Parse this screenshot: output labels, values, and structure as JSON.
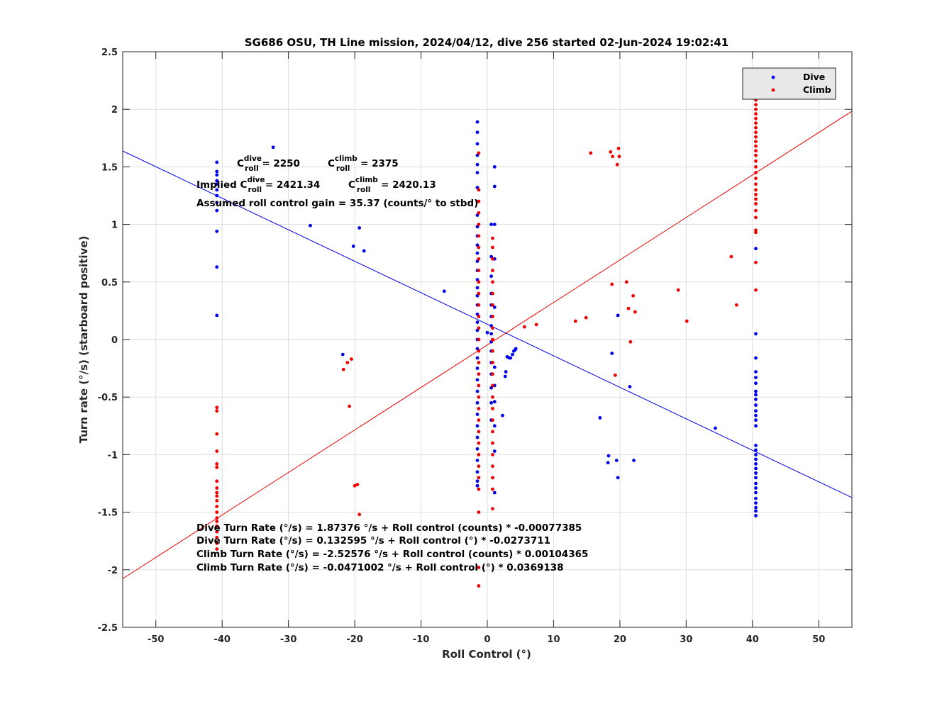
{
  "chart_data": {
    "type": "scatter",
    "title": "SG686 OSU, TH Line mission, 2024/04/12, dive 256 started 02-Jun-2024 19:02:41",
    "xlabel": "Roll Control (°)",
    "ylabel": "Turn rate (°/s) (starboard positive)",
    "xlim": [
      -55,
      55
    ],
    "ylim": [
      -2.5,
      2.5
    ],
    "xticks": [
      -50,
      -40,
      -30,
      -20,
      -10,
      0,
      10,
      20,
      30,
      40,
      50
    ],
    "yticks": [
      -2.5,
      -2,
      -1.5,
      -1,
      -0.5,
      0,
      0.5,
      1,
      1.5,
      2,
      2.5
    ],
    "grid": true,
    "legend_position": "top-right",
    "colors": {
      "dive": "#0000ee",
      "climb": "#ee0000"
    },
    "series": [
      {
        "name": "Dive",
        "color": "#0000ee",
        "points": [
          [
            -40.8,
            1.54
          ],
          [
            -40.8,
            1.46
          ],
          [
            -40.8,
            1.43
          ],
          [
            -40.8,
            1.38
          ],
          [
            -40.8,
            1.35
          ],
          [
            -40.8,
            1.3
          ],
          [
            -40.8,
            1.25
          ],
          [
            -40.8,
            1.19
          ],
          [
            -40.8,
            1.12
          ],
          [
            -40.8,
            0.94
          ],
          [
            -40.8,
            0.63
          ],
          [
            -40.8,
            0.21
          ],
          [
            -32.3,
            1.67
          ],
          [
            -26.7,
            0.99
          ],
          [
            -19.3,
            0.97
          ],
          [
            -20.2,
            0.81
          ],
          [
            -18.6,
            0.77
          ],
          [
            -21.8,
            -0.13
          ],
          [
            -6.5,
            0.42
          ],
          [
            -1.5,
            1.89
          ],
          [
            -1.5,
            1.8
          ],
          [
            -1.5,
            1.7
          ],
          [
            -1.5,
            1.6
          ],
          [
            -1.5,
            1.52
          ],
          [
            -1.5,
            1.45
          ],
          [
            -1.5,
            1.32
          ],
          [
            -1.5,
            1.2
          ],
          [
            -1.5,
            1.08
          ],
          [
            -1.5,
            0.98
          ],
          [
            -1.5,
            0.9
          ],
          [
            -1.5,
            0.82
          ],
          [
            -1.5,
            0.75
          ],
          [
            -1.5,
            0.68
          ],
          [
            -1.5,
            0.6
          ],
          [
            -1.5,
            0.52
          ],
          [
            -1.5,
            0.45
          ],
          [
            -1.5,
            0.38
          ],
          [
            -1.5,
            0.3
          ],
          [
            -1.5,
            0.22
          ],
          [
            -1.5,
            0.15
          ],
          [
            -1.5,
            0.08
          ],
          [
            -1.5,
            0.0
          ],
          [
            -1.5,
            -0.08
          ],
          [
            -1.5,
            -0.16
          ],
          [
            -1.5,
            -0.25
          ],
          [
            -1.5,
            -0.35
          ],
          [
            -1.5,
            -0.45
          ],
          [
            -1.5,
            -0.55
          ],
          [
            -1.5,
            -0.65
          ],
          [
            -1.5,
            -0.75
          ],
          [
            -1.5,
            -0.85
          ],
          [
            -1.5,
            -0.95
          ],
          [
            -1.5,
            -1.05
          ],
          [
            -1.5,
            -1.15
          ],
          [
            -1.5,
            -1.23
          ],
          [
            -1.5,
            -1.27
          ],
          [
            0.0,
            0.06
          ],
          [
            0.6,
            1.0
          ],
          [
            0.6,
            0.72
          ],
          [
            0.6,
            0.55
          ],
          [
            0.6,
            0.4
          ],
          [
            0.6,
            0.3
          ],
          [
            0.6,
            0.2
          ],
          [
            0.6,
            0.12
          ],
          [
            0.6,
            0.05
          ],
          [
            0.6,
            -0.02
          ],
          [
            0.6,
            -0.1
          ],
          [
            0.6,
            -0.2
          ],
          [
            0.6,
            -0.3
          ],
          [
            0.6,
            -0.42
          ],
          [
            0.6,
            -0.55
          ],
          [
            0.6,
            -0.7
          ],
          [
            1.1,
            1.5
          ],
          [
            1.1,
            1.33
          ],
          [
            1.1,
            1.0
          ],
          [
            1.1,
            0.7
          ],
          [
            1.1,
            0.28
          ],
          [
            1.1,
            -0.24
          ],
          [
            1.1,
            -0.4
          ],
          [
            1.1,
            -0.54
          ],
          [
            1.1,
            -0.75
          ],
          [
            1.1,
            -0.97
          ],
          [
            1.1,
            -1.33
          ],
          [
            2.3,
            -0.66
          ],
          [
            2.7,
            -0.32
          ],
          [
            2.8,
            -0.28
          ],
          [
            3.0,
            -0.15
          ],
          [
            3.3,
            -0.16
          ],
          [
            3.5,
            -0.16
          ],
          [
            3.8,
            -0.13
          ],
          [
            4.0,
            -0.1
          ],
          [
            4.2,
            -0.09
          ],
          [
            4.3,
            -0.08
          ],
          [
            17.0,
            -0.68
          ],
          [
            18.2,
            -1.07
          ],
          [
            18.3,
            -1.01
          ],
          [
            19.5,
            -1.05
          ],
          [
            19.7,
            -1.2
          ],
          [
            18.8,
            -0.12
          ],
          [
            19.7,
            0.21
          ],
          [
            21.5,
            -0.41
          ],
          [
            22.1,
            -1.05
          ],
          [
            34.4,
            -0.77
          ],
          [
            40.5,
            0.79
          ],
          [
            40.5,
            0.05
          ],
          [
            40.5,
            -0.16
          ],
          [
            40.5,
            -0.28
          ],
          [
            40.5,
            -0.33
          ],
          [
            40.5,
            -0.38
          ],
          [
            40.5,
            -0.45
          ],
          [
            40.5,
            -0.48
          ],
          [
            40.5,
            -0.52
          ],
          [
            40.5,
            -0.57
          ],
          [
            40.5,
            -0.62
          ],
          [
            40.5,
            -0.66
          ],
          [
            40.5,
            -0.7
          ],
          [
            40.5,
            -0.75
          ],
          [
            40.5,
            -0.92
          ],
          [
            40.5,
            -0.96
          ],
          [
            40.5,
            -1.0
          ],
          [
            40.5,
            -1.04
          ],
          [
            40.5,
            -1.08
          ],
          [
            40.5,
            -1.12
          ],
          [
            40.5,
            -1.16
          ],
          [
            40.5,
            -1.2
          ],
          [
            40.5,
            -1.25
          ],
          [
            40.5,
            -1.29
          ],
          [
            40.5,
            -1.33
          ],
          [
            40.5,
            -1.38
          ],
          [
            40.5,
            -1.42
          ],
          [
            40.5,
            -1.46
          ],
          [
            40.5,
            -1.49
          ],
          [
            40.5,
            -1.53
          ]
        ],
        "fit_line": {
          "intercept": 0.132595,
          "slope": -0.0273711
        }
      },
      {
        "name": "Climb",
        "color": "#ee0000",
        "points": [
          [
            -40.8,
            -0.59
          ],
          [
            -40.8,
            -0.62
          ],
          [
            -40.8,
            -0.82
          ],
          [
            -40.8,
            -0.97
          ],
          [
            -40.8,
            -1.08
          ],
          [
            -40.8,
            -1.11
          ],
          [
            -40.8,
            -1.23
          ],
          [
            -40.8,
            -1.29
          ],
          [
            -40.8,
            -1.33
          ],
          [
            -40.8,
            -1.36
          ],
          [
            -40.8,
            -1.4
          ],
          [
            -40.8,
            -1.45
          ],
          [
            -40.8,
            -1.5
          ],
          [
            -40.8,
            -1.55
          ],
          [
            -40.8,
            -1.58
          ],
          [
            -40.8,
            -1.62
          ],
          [
            -40.8,
            -1.67
          ],
          [
            -40.8,
            -1.72
          ],
          [
            -40.8,
            -1.77
          ],
          [
            -40.8,
            -1.82
          ],
          [
            -21.7,
            -0.26
          ],
          [
            -21.1,
            -0.2
          ],
          [
            -20.5,
            -0.17
          ],
          [
            -20.8,
            -0.58
          ],
          [
            -20.0,
            -1.27
          ],
          [
            -19.6,
            -1.26
          ],
          [
            -19.3,
            -1.52
          ],
          [
            -1.3,
            1.62
          ],
          [
            -1.3,
            1.3
          ],
          [
            -1.3,
            1.2
          ],
          [
            -1.3,
            1.1
          ],
          [
            -1.3,
            1.0
          ],
          [
            -1.3,
            0.9
          ],
          [
            -1.3,
            0.8
          ],
          [
            -1.3,
            0.7
          ],
          [
            -1.3,
            0.6
          ],
          [
            -1.3,
            0.5
          ],
          [
            -1.3,
            0.4
          ],
          [
            -1.3,
            0.3
          ],
          [
            -1.3,
            0.2
          ],
          [
            -1.3,
            0.1
          ],
          [
            -1.3,
            0.0
          ],
          [
            -1.3,
            -0.1
          ],
          [
            -1.3,
            -0.2
          ],
          [
            -1.3,
            -0.3
          ],
          [
            -1.3,
            -0.4
          ],
          [
            -1.3,
            -0.5
          ],
          [
            -1.3,
            -0.6
          ],
          [
            -1.3,
            -0.7
          ],
          [
            -1.3,
            -0.8
          ],
          [
            -1.3,
            -0.9
          ],
          [
            -1.3,
            -1.0
          ],
          [
            -1.3,
            -1.1
          ],
          [
            -1.3,
            -1.2
          ],
          [
            -1.3,
            -1.3
          ],
          [
            -1.3,
            -1.5
          ],
          [
            -1.3,
            -1.98
          ],
          [
            -1.3,
            -2.14
          ],
          [
            0.8,
            0.88
          ],
          [
            0.8,
            0.8
          ],
          [
            0.8,
            0.7
          ],
          [
            0.8,
            0.6
          ],
          [
            0.8,
            0.5
          ],
          [
            0.8,
            0.4
          ],
          [
            0.8,
            0.3
          ],
          [
            0.8,
            0.2
          ],
          [
            0.8,
            0.1
          ],
          [
            0.8,
            0.0
          ],
          [
            0.8,
            -0.1
          ],
          [
            0.8,
            -0.2
          ],
          [
            0.8,
            -0.3
          ],
          [
            0.8,
            -0.4
          ],
          [
            0.8,
            -0.5
          ],
          [
            0.8,
            -0.6
          ],
          [
            0.8,
            -0.7
          ],
          [
            0.8,
            -0.8
          ],
          [
            0.8,
            -0.9
          ],
          [
            0.8,
            -1.0
          ],
          [
            0.8,
            -1.1
          ],
          [
            0.8,
            -1.2
          ],
          [
            0.8,
            -1.3
          ],
          [
            0.8,
            -1.47
          ],
          [
            5.6,
            0.11
          ],
          [
            7.4,
            0.13
          ],
          [
            13.3,
            0.16
          ],
          [
            14.9,
            0.19
          ],
          [
            15.6,
            1.62
          ],
          [
            18.6,
            1.63
          ],
          [
            18.9,
            1.59
          ],
          [
            19.8,
            1.66
          ],
          [
            19.9,
            1.59
          ],
          [
            19.6,
            1.52
          ],
          [
            18.8,
            0.48
          ],
          [
            21.0,
            0.5
          ],
          [
            21.3,
            0.27
          ],
          [
            22.0,
            0.38
          ],
          [
            22.3,
            0.24
          ],
          [
            21.6,
            -0.02
          ],
          [
            19.3,
            -0.31
          ],
          [
            28.8,
            0.43
          ],
          [
            30.1,
            0.16
          ],
          [
            36.8,
            0.72
          ],
          [
            37.6,
            0.3
          ],
          [
            40.5,
            2.12
          ],
          [
            40.5,
            2.08
          ],
          [
            40.5,
            2.04
          ],
          [
            40.5,
            2.0
          ],
          [
            40.5,
            1.96
          ],
          [
            40.5,
            1.92
          ],
          [
            40.5,
            1.88
          ],
          [
            40.5,
            1.84
          ],
          [
            40.5,
            1.8
          ],
          [
            40.5,
            1.76
          ],
          [
            40.5,
            1.72
          ],
          [
            40.5,
            1.68
          ],
          [
            40.5,
            1.64
          ],
          [
            40.5,
            1.6
          ],
          [
            40.5,
            1.55
          ],
          [
            40.5,
            1.5
          ],
          [
            40.5,
            1.45
          ],
          [
            40.5,
            1.4
          ],
          [
            40.5,
            1.35
          ],
          [
            40.5,
            1.3
          ],
          [
            40.5,
            1.26
          ],
          [
            40.5,
            1.22
          ],
          [
            40.5,
            1.18
          ],
          [
            40.5,
            1.12
          ],
          [
            40.5,
            1.06
          ],
          [
            40.5,
            0.95
          ],
          [
            40.5,
            0.93
          ],
          [
            40.5,
            0.67
          ],
          [
            40.5,
            0.43
          ]
        ],
        "fit_line": {
          "intercept": -0.0471002,
          "slope": 0.0369138
        }
      }
    ],
    "annotations": {
      "c_dive": {
        "base": "C",
        "sup": "dive",
        "sub": "roll",
        "value": " = 2250"
      },
      "c_climb": {
        "base": "C",
        "sup": "climb",
        "sub": "roll",
        "value": " = 2375"
      },
      "implied_prefix": "Implied C",
      "implied_dive": {
        "sup": "dive",
        "sub": "roll",
        "value": " = 2421.34"
      },
      "implied_climb": {
        "base": "C",
        "sup": "climb",
        "sub": "roll",
        "value": " = 2420.13"
      },
      "gain": "Assumed roll control gain = 35.37 (counts/° to stbd)",
      "eq_lines": [
        "Dive Turn Rate (°/s) = 1.87376 °/s + Roll control (counts) * -0.00077385",
        "Dive Turn Rate (°/s) = 0.132595  °/s + Roll control (°) * -0.0273711",
        "Climb Turn Rate (°/s) = -2.52576 °/s + Roll control (counts) * 0.00104365",
        "Climb Turn Rate (°/s) = -0.0471002 °/s + Roll control (°) * 0.0369138"
      ]
    }
  }
}
